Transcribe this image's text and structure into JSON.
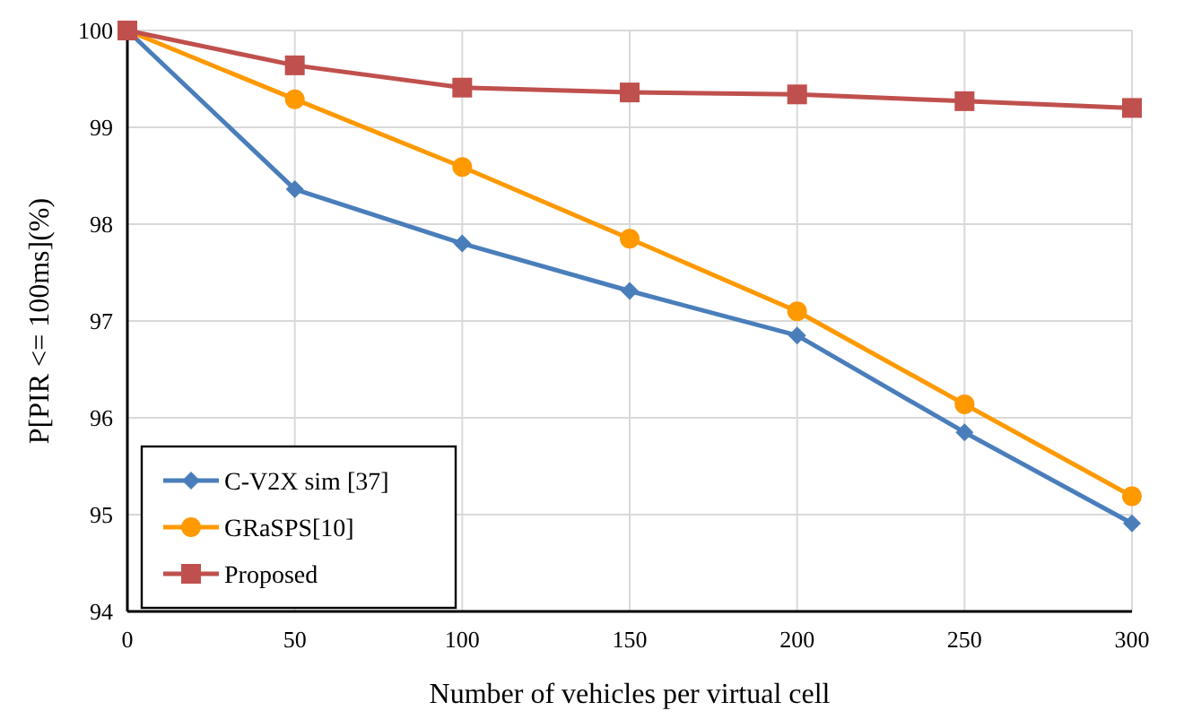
{
  "chart_data": {
    "type": "line",
    "xlabel": "Number of vehicles per virtual cell",
    "ylabel": "P[PIR <= 100ms](%)",
    "x": [
      0,
      50,
      100,
      150,
      200,
      250,
      300
    ],
    "series": [
      {
        "name": "C-V2X sim [37]",
        "color": "#4a7ebb",
        "marker": "diamond",
        "values": [
          100,
          98.36,
          97.8,
          97.31,
          96.85,
          95.85,
          94.91
        ]
      },
      {
        "name": "GRaSPS[10]",
        "color": "#ff9900",
        "marker": "circle",
        "values": [
          100,
          99.29,
          98.59,
          97.85,
          97.1,
          96.14,
          95.19
        ]
      },
      {
        "name": "Proposed",
        "color": "#c0504d",
        "marker": "square",
        "values": [
          100,
          99.64,
          99.41,
          99.36,
          99.34,
          99.27,
          99.2
        ]
      }
    ],
    "xlim": [
      0,
      300
    ],
    "xticks": [
      0,
      50,
      100,
      150,
      200,
      250,
      300
    ],
    "ylim": [
      94,
      100
    ],
    "yticks": [
      94,
      95,
      96,
      97,
      98,
      99,
      100
    ],
    "grid": true,
    "legend": "bottom left"
  }
}
